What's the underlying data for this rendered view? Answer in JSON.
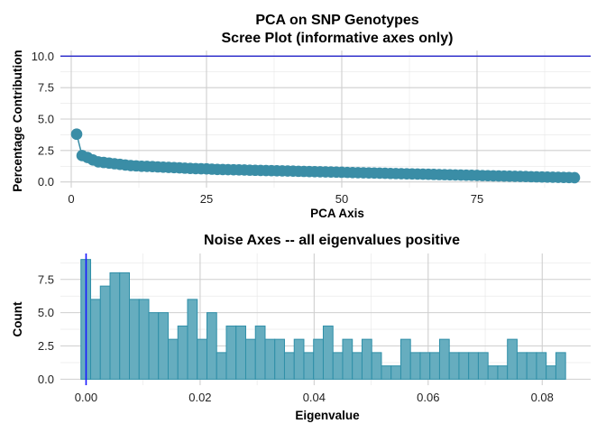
{
  "chart_data": [
    {
      "type": "scatter",
      "title": "PCA on SNP Genotypes\nScree Plot (informative axes only)",
      "title_lines": [
        "PCA on SNP Genotypes",
        "Scree Plot (informative axes only)"
      ],
      "xlabel": "PCA Axis",
      "ylabel": "Percentage Contribution",
      "xlim": [
        -2,
        96
      ],
      "ylim": [
        -0.45,
        10.45
      ],
      "x_ticks": [
        0,
        25,
        50,
        75
      ],
      "x_tick_labels": [
        "0",
        "25",
        "50",
        "75"
      ],
      "y_ticks": [
        0,
        2.5,
        5,
        7.5,
        10
      ],
      "y_tick_labels": [
        "0.0",
        "2.5",
        "5.0",
        "7.5",
        "10.0"
      ],
      "grid": true,
      "point_color": "#3a8da6",
      "reference_line": {
        "y": 10.0,
        "color": "#3333cc"
      },
      "x": [
        1,
        2,
        3,
        4,
        5,
        6,
        7,
        8,
        9,
        10,
        11,
        12,
        13,
        14,
        15,
        16,
        17,
        18,
        19,
        20,
        21,
        22,
        23,
        24,
        25,
        26,
        27,
        28,
        29,
        30,
        31,
        32,
        33,
        34,
        35,
        36,
        37,
        38,
        39,
        40,
        41,
        42,
        43,
        44,
        45,
        46,
        47,
        48,
        49,
        50,
        51,
        52,
        53,
        54,
        55,
        56,
        57,
        58,
        59,
        60,
        61,
        62,
        63,
        64,
        65,
        66,
        67,
        68,
        69,
        70,
        71,
        72,
        73,
        74,
        75,
        76,
        77,
        78,
        79,
        80,
        81,
        82,
        83,
        84,
        85,
        86,
        87,
        88,
        89,
        90,
        91,
        92,
        93
      ],
      "values": [
        3.8,
        2.1,
        1.95,
        1.75,
        1.6,
        1.55,
        1.5,
        1.45,
        1.4,
        1.35,
        1.3,
        1.28,
        1.25,
        1.24,
        1.22,
        1.2,
        1.18,
        1.16,
        1.14,
        1.12,
        1.1,
        1.08,
        1.06,
        1.05,
        1.04,
        1.02,
        1.0,
        0.99,
        0.98,
        0.97,
        0.96,
        0.95,
        0.94,
        0.93,
        0.92,
        0.91,
        0.9,
        0.89,
        0.88,
        0.87,
        0.86,
        0.85,
        0.84,
        0.83,
        0.82,
        0.81,
        0.8,
        0.79,
        0.78,
        0.77,
        0.76,
        0.75,
        0.74,
        0.73,
        0.72,
        0.71,
        0.7,
        0.69,
        0.68,
        0.67,
        0.66,
        0.65,
        0.64,
        0.63,
        0.62,
        0.61,
        0.6,
        0.59,
        0.58,
        0.57,
        0.56,
        0.55,
        0.54,
        0.53,
        0.52,
        0.51,
        0.5,
        0.49,
        0.48,
        0.47,
        0.46,
        0.45,
        0.44,
        0.43,
        0.42,
        0.41,
        0.4,
        0.39,
        0.38,
        0.37,
        0.36,
        0.35,
        0.34
      ]
    },
    {
      "type": "bar",
      "subtype": "histogram",
      "title": "Noise Axes -- all eigenvalues positive",
      "xlabel": "Eigenvalue",
      "ylabel": "Count",
      "xlim": [
        -0.0045,
        0.0885
      ],
      "ylim": [
        -0.45,
        9.45
      ],
      "x_ticks": [
        0,
        0.02,
        0.04,
        0.06,
        0.08
      ],
      "x_tick_labels": [
        "0.00",
        "0.02",
        "0.04",
        "0.06",
        "0.08"
      ],
      "y_ticks": [
        0,
        2.5,
        5,
        7.5
      ],
      "y_tick_labels": [
        "0.0",
        "2.5",
        "5.0",
        "7.5"
      ],
      "grid": true,
      "bar_fill": "#66adbf",
      "bar_edge": "#2f8fa8",
      "reference_line": {
        "x": 0.0,
        "color": "#1a1aff"
      },
      "bins_start": -0.0009,
      "bin_width": 0.0017,
      "values": [
        9,
        6,
        7,
        8,
        8,
        6,
        6,
        5,
        5,
        3,
        4,
        6,
        3,
        5,
        2,
        4,
        4,
        3,
        4,
        3,
        3,
        2,
        3,
        2,
        3,
        4,
        2,
        3,
        2,
        3,
        2,
        1,
        1,
        3,
        2,
        2,
        2,
        3,
        2,
        2,
        2,
        2,
        1,
        1,
        3,
        2,
        2,
        2,
        1,
        2
      ]
    }
  ]
}
